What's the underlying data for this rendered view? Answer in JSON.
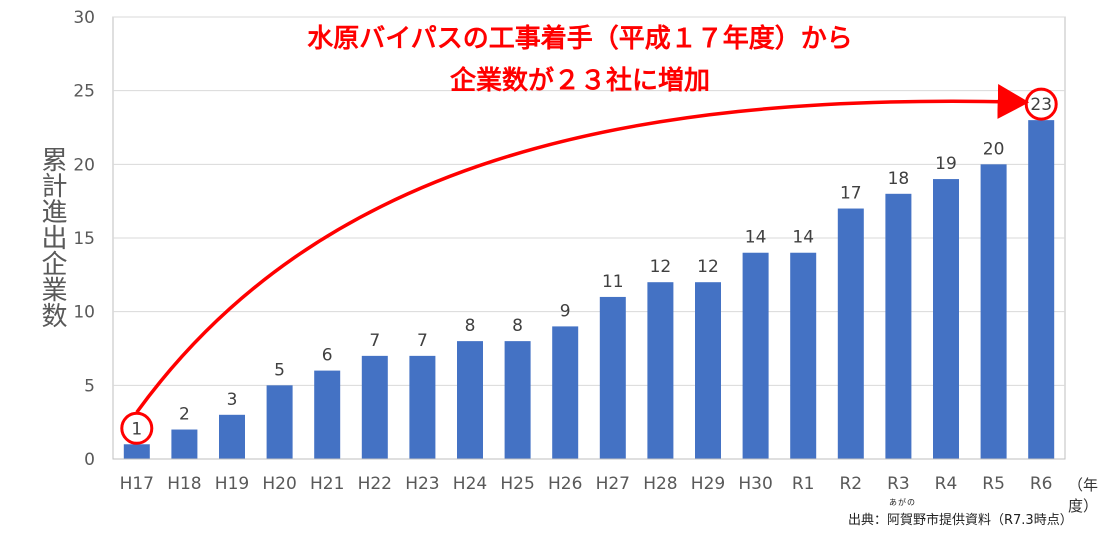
{
  "headline": {
    "line1": "水原バイパスの工事着手（平成１７年度）から",
    "line2": "企業数が２３社に増加"
  },
  "source_note": "出典：阿賀野市提供資料（R7.3時点）",
  "source_ruby": "あがの",
  "x_unit": "（年度）",
  "colors": {
    "bar": "#4472c4",
    "accent": "#ff0000",
    "text": "#595959",
    "grid": "#d9d9d9"
  },
  "chart_data": {
    "type": "bar",
    "categories": [
      "H17",
      "H18",
      "H19",
      "H20",
      "H21",
      "H22",
      "H23",
      "H24",
      "H25",
      "H26",
      "H27",
      "H28",
      "H29",
      "H30",
      "R1",
      "R2",
      "R3",
      "R4",
      "R5",
      "R6"
    ],
    "values": [
      1,
      2,
      3,
      5,
      6,
      7,
      7,
      8,
      8,
      9,
      11,
      12,
      12,
      14,
      14,
      17,
      18,
      19,
      20,
      23
    ],
    "ylabel": "累計進出企業数",
    "ylim": [
      0,
      30
    ],
    "yticks": [
      0,
      5,
      10,
      15,
      20,
      25,
      30
    ],
    "grid": true,
    "highlighted": [
      "H17",
      "R6"
    ],
    "annotation": "arrow from H17 to R6"
  }
}
